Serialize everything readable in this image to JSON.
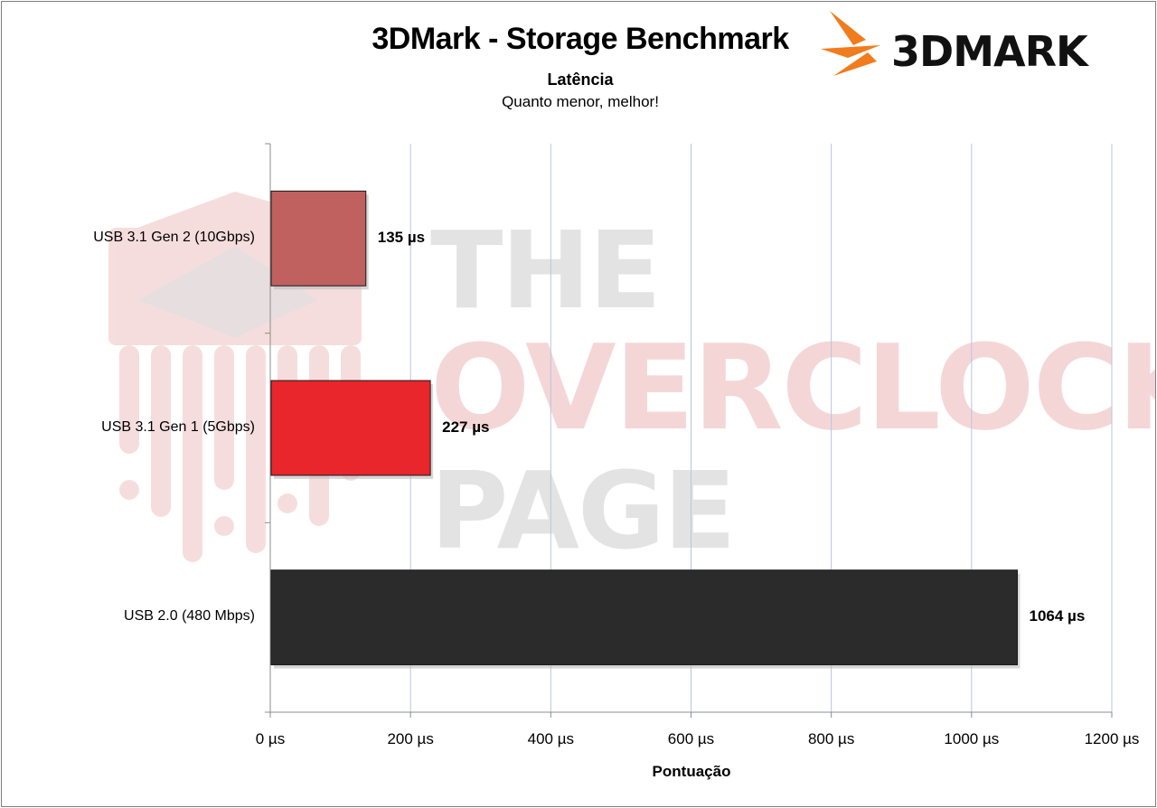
{
  "chart_data": {
    "type": "bar",
    "orientation": "horizontal",
    "title": "3DMark - Storage Benchmark",
    "subtitle": "Latência",
    "subtitle2": "Quanto menor, melhor!",
    "xlabel": "Pontuação",
    "ylabel": "",
    "categories": [
      "USB 3.1 Gen 2 (10Gbps)",
      "USB 3.1 Gen 1 (5Gbps)",
      "USB 2.0 (480 Mbps)"
    ],
    "values": [
      135,
      227,
      1064
    ],
    "value_labels": [
      "135 µs",
      "227 µs",
      "1064 µs"
    ],
    "bar_colors": [
      "#c0605f",
      "#e8262b",
      "#2b2b2b"
    ],
    "xlim": [
      0,
      1200
    ],
    "xticks": [
      0,
      200,
      400,
      600,
      800,
      1000,
      1200
    ],
    "xtick_labels": [
      "0 µs",
      "200 µs",
      "400 µs",
      "600 µs",
      "800 µs",
      "1000 µs",
      "1200 µs"
    ],
    "grid": true,
    "gridline_color": "#b8c4e0",
    "legend": "none"
  },
  "branding": {
    "logo_text": "3DMARK",
    "logo_accent": "#f07c1e",
    "watermark_lines": [
      "THE",
      "OVERCLOCK",
      "PAGE"
    ],
    "watermark_color": "#e0dfdf",
    "watermark_accent": "#f4d3d4"
  }
}
